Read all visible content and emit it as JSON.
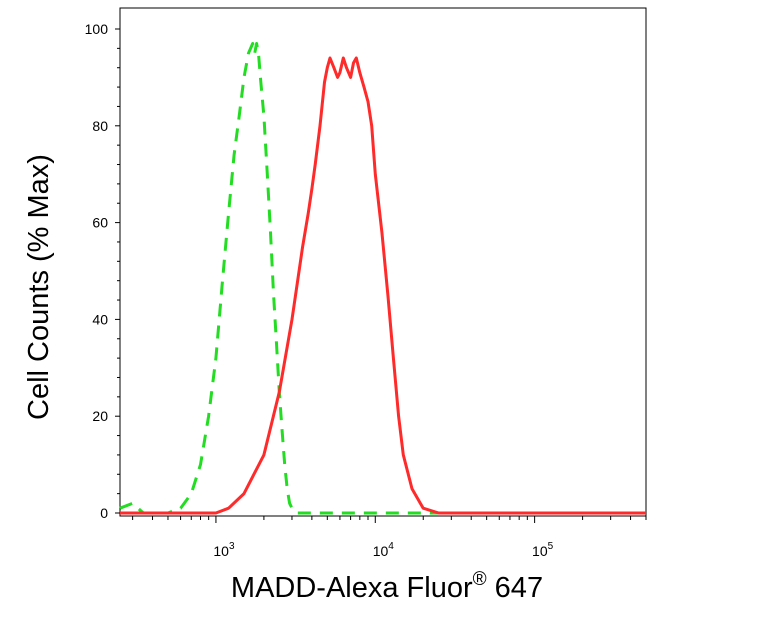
{
  "chart_data": {
    "type": "line",
    "xlabel": "MADD-Alexa Fluor",
    "xlabel_sup": "®",
    "xlabel_suffix": " 647",
    "ylabel": "Cell Counts (% Max)",
    "x_scale": "log",
    "xlim": [
      250,
      500000
    ],
    "ylim": [
      0,
      100
    ],
    "y_ticks": [
      0,
      20,
      40,
      60,
      80,
      100
    ],
    "y_tick_labels": [
      "0",
      "20",
      "40",
      "60",
      "80",
      "100"
    ],
    "x_ticks": [
      {
        "value": 1000,
        "base": "10",
        "exp": "3"
      },
      {
        "value": 10000,
        "base": "10",
        "exp": "4"
      },
      {
        "value": 100000,
        "base": "10",
        "exp": "5"
      }
    ],
    "grid": false,
    "legend": "none",
    "series": [
      {
        "style": "dashed",
        "color": "#22dd22",
        "x": [
          250,
          300,
          350,
          500,
          600,
          700,
          800,
          900,
          1000,
          1100,
          1200,
          1300,
          1400,
          1500,
          1600,
          1700,
          1750,
          1800,
          1850,
          1900,
          2000,
          2100,
          2200,
          2300,
          2400,
          2500,
          2600,
          2700,
          2800,
          2900,
          3000,
          3200,
          3500,
          5000,
          10000,
          100000,
          500000
        ],
        "y": [
          1,
          2,
          0,
          0,
          1,
          4,
          10,
          20,
          32,
          48,
          62,
          74,
          82,
          90,
          95,
          97,
          95,
          97,
          95,
          90,
          82,
          70,
          58,
          45,
          35,
          25,
          17,
          10,
          5,
          2,
          1,
          0,
          0,
          0,
          0,
          0,
          0
        ]
      },
      {
        "style": "solid",
        "color": "#ff2a2a",
        "x": [
          250,
          1000,
          1200,
          1500,
          2000,
          2500,
          3000,
          3500,
          3800,
          4000,
          4200,
          4500,
          4800,
          5000,
          5200,
          5500,
          5800,
          6000,
          6300,
          6600,
          7000,
          7300,
          7600,
          8000,
          8500,
          9000,
          9500,
          10000,
          11000,
          12000,
          13000,
          14000,
          15000,
          17000,
          20000,
          25000,
          30000,
          40000,
          500000
        ],
        "y": [
          0,
          0,
          1,
          4,
          12,
          25,
          40,
          55,
          62,
          67,
          72,
          80,
          89,
          92,
          94,
          92,
          90,
          91,
          94,
          92,
          90,
          93,
          94,
          91,
          88,
          85,
          80,
          70,
          58,
          45,
          32,
          20,
          12,
          5,
          1,
          0,
          0,
          0,
          0
        ]
      }
    ]
  }
}
